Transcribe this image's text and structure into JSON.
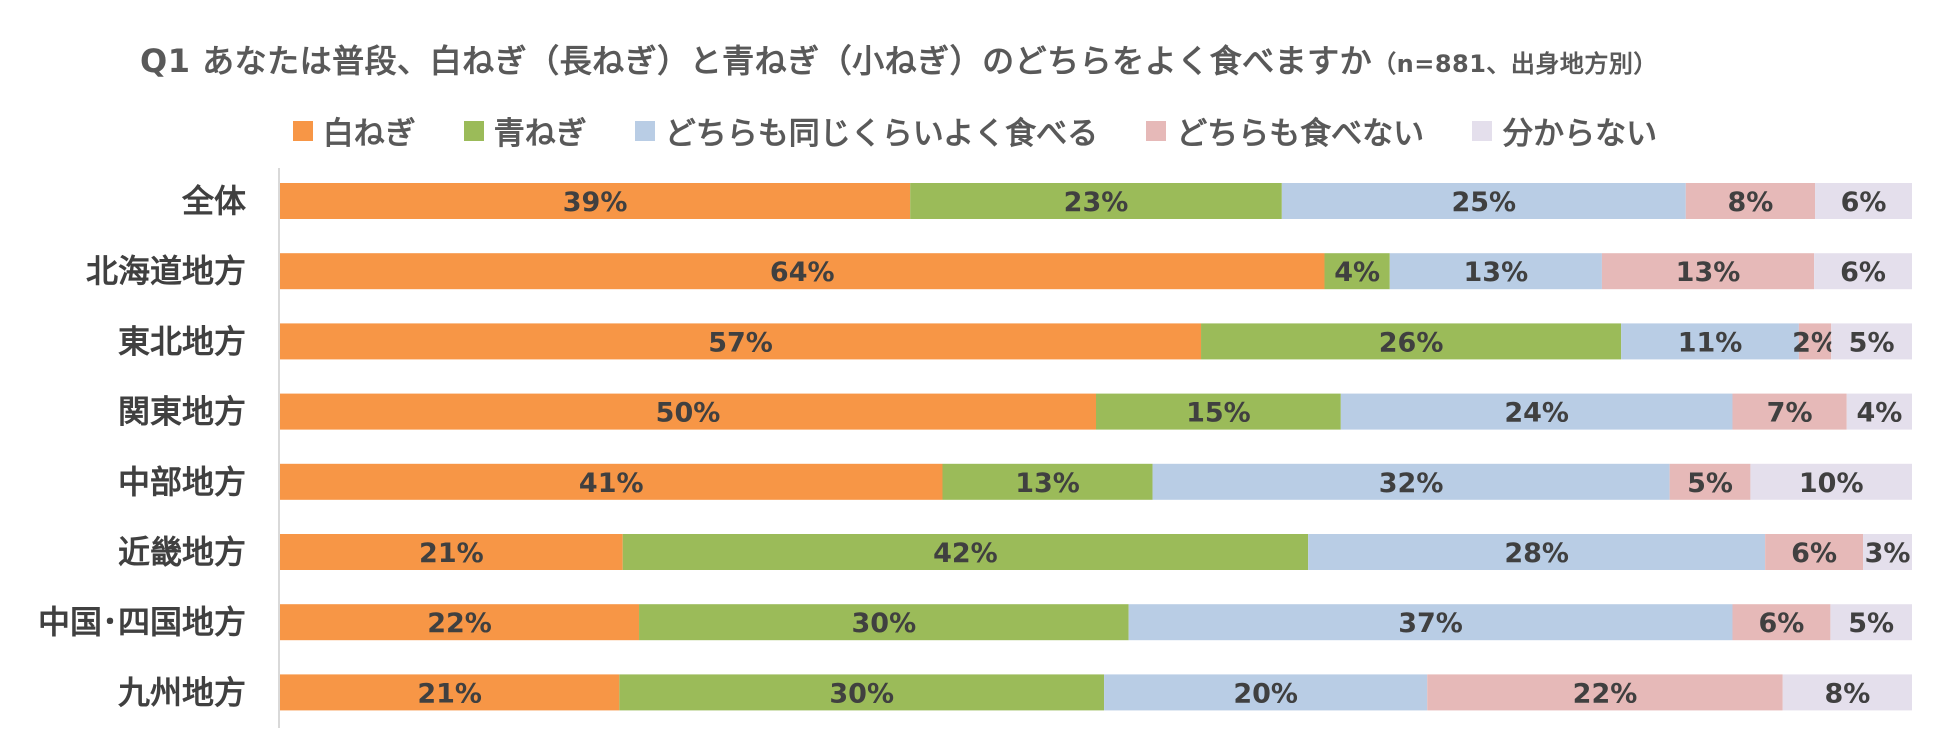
{
  "title": {
    "main": "Q1 あなたは普段、白ねぎ（長ねぎ）と青ねぎ（小ねぎ）のどちらをよく食べますか",
    "sub": "（n=881、出身地方別）"
  },
  "chart_data": {
    "type": "bar",
    "orientation": "horizontal",
    "stacked": "percent",
    "categories": [
      "全体",
      "北海道地方",
      "東北地方",
      "関東地方",
      "中部地方",
      "近畿地方",
      "中国･四国地方",
      "九州地方"
    ],
    "series": [
      {
        "name": "白ねぎ",
        "color": "#F79646",
        "values": [
          39,
          64,
          57,
          50,
          41,
          21,
          22,
          21
        ]
      },
      {
        "name": "青ねぎ",
        "color": "#9BBB59",
        "values": [
          23,
          4,
          26,
          15,
          13,
          42,
          30,
          30
        ]
      },
      {
        "name": "どちらも同じくらいよく食べる",
        "color": "#B9CDE5",
        "values": [
          25,
          13,
          11,
          24,
          32,
          28,
          37,
          20
        ]
      },
      {
        "name": "どちらも食べない",
        "color": "#E6B9B8",
        "values": [
          8,
          13,
          2,
          7,
          5,
          6,
          6,
          22
        ]
      },
      {
        "name": "分からない",
        "color": "#E4DFEC",
        "values": [
          6,
          6,
          5,
          4,
          10,
          3,
          5,
          8
        ]
      }
    ],
    "data_label_suffix": "%",
    "legend_position": "top",
    "grid": false
  }
}
